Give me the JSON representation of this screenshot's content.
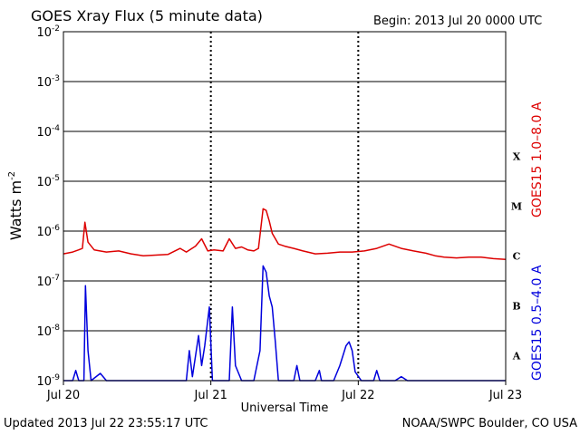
{
  "header": {
    "title": "GOES Xray Flux (5 minute data)",
    "begin": "Begin:  2013 Jul 20 0000 UTC"
  },
  "footer": {
    "updated": "Updated 2013 Jul 22 23:55:17 UTC",
    "credit": "NOAA/SWPC Boulder, CO USA"
  },
  "chart_data": {
    "type": "line",
    "title": "GOES Xray Flux (5 minute data)",
    "xlabel": "Universal Time",
    "ylabel": "Watts m",
    "ylabel_superscript": "-2",
    "yscale": "log",
    "ylim": [
      1e-09,
      0.01
    ],
    "xlim": [
      "2013-07-20 00:00",
      "2013-07-23 00:00"
    ],
    "x_ticks": [
      "Jul 20",
      "Jul 21",
      "Jul 22",
      "Jul 23"
    ],
    "y_ticks": [
      {
        "base": "10",
        "exp": "-2"
      },
      {
        "base": "10",
        "exp": "-3"
      },
      {
        "base": "10",
        "exp": "-4"
      },
      {
        "base": "10",
        "exp": "-5"
      },
      {
        "base": "10",
        "exp": "-6"
      },
      {
        "base": "10",
        "exp": "-7"
      },
      {
        "base": "10",
        "exp": "-8"
      },
      {
        "base": "10",
        "exp": "-9"
      }
    ],
    "flare_classes": [
      "X",
      "M",
      "C",
      "B",
      "A"
    ],
    "grid": true,
    "series": [
      {
        "name": "GOES15 1.0–8.0 A",
        "color": "#dd0000",
        "points": [
          [
            "2013-07-20 00:00",
            3.5e-07
          ],
          [
            "2013-07-20 01:30",
            3.8e-07
          ],
          [
            "2013-07-20 02:30",
            4.2e-07
          ],
          [
            "2013-07-20 03:05",
            4.5e-07
          ],
          [
            "2013-07-20 03:30",
            1.5e-06
          ],
          [
            "2013-07-20 04:00",
            6e-07
          ],
          [
            "2013-07-20 05:00",
            4.2e-07
          ],
          [
            "2013-07-20 07:00",
            3.8e-07
          ],
          [
            "2013-07-20 09:00",
            4e-07
          ],
          [
            "2013-07-20 11:00",
            3.5e-07
          ],
          [
            "2013-07-20 13:00",
            3.2e-07
          ],
          [
            "2013-07-20 15:00",
            3.3e-07
          ],
          [
            "2013-07-20 17:00",
            3.4e-07
          ],
          [
            "2013-07-20 19:00",
            4.5e-07
          ],
          [
            "2013-07-20 20:00",
            3.8e-07
          ],
          [
            "2013-07-20 21:30",
            5e-07
          ],
          [
            "2013-07-20 22:30",
            7e-07
          ],
          [
            "2013-07-20 23:30",
            4e-07
          ],
          [
            "2013-07-21 00:30",
            4.2e-07
          ],
          [
            "2013-07-21 02:00",
            4e-07
          ],
          [
            "2013-07-21 03:00",
            7e-07
          ],
          [
            "2013-07-21 04:00",
            4.5e-07
          ],
          [
            "2013-07-21 05:00",
            4.8e-07
          ],
          [
            "2013-07-21 06:00",
            4.2e-07
          ],
          [
            "2013-07-21 07:00",
            4e-07
          ],
          [
            "2013-07-21 07:45",
            4.5e-07
          ],
          [
            "2013-07-21 08:30",
            2.8e-06
          ],
          [
            "2013-07-21 09:00",
            2.6e-06
          ],
          [
            "2013-07-21 09:30",
            1.6e-06
          ],
          [
            "2013-07-21 10:00",
            9e-07
          ],
          [
            "2013-07-21 11:00",
            5.5e-07
          ],
          [
            "2013-07-21 12:00",
            5e-07
          ],
          [
            "2013-07-21 13:30",
            4.5e-07
          ],
          [
            "2013-07-21 15:00",
            4e-07
          ],
          [
            "2013-07-21 17:00",
            3.5e-07
          ],
          [
            "2013-07-21 19:00",
            3.6e-07
          ],
          [
            "2013-07-21 21:00",
            3.8e-07
          ],
          [
            "2013-07-21 23:00",
            3.8e-07
          ],
          [
            "2013-07-22 01:00",
            4e-07
          ],
          [
            "2013-07-22 03:00",
            4.5e-07
          ],
          [
            "2013-07-22 05:00",
            5.5e-07
          ],
          [
            "2013-07-22 07:00",
            4.5e-07
          ],
          [
            "2013-07-22 09:00",
            4e-07
          ],
          [
            "2013-07-22 11:00",
            3.6e-07
          ],
          [
            "2013-07-22 12:30",
            3.2e-07
          ],
          [
            "2013-07-22 14:00",
            3e-07
          ],
          [
            "2013-07-22 16:00",
            2.9e-07
          ],
          [
            "2013-07-22 18:00",
            3e-07
          ],
          [
            "2013-07-22 20:00",
            3e-07
          ],
          [
            "2013-07-22 22:00",
            2.8e-07
          ],
          [
            "2013-07-23 00:00",
            2.7e-07
          ]
        ]
      },
      {
        "name": "GOES15 0.5–4.0 A",
        "color": "#0000dd",
        "points": [
          [
            "2013-07-20 00:00",
            1e-09
          ],
          [
            "2013-07-20 01:30",
            1e-09
          ],
          [
            "2013-07-20 02:00",
            1.6e-09
          ],
          [
            "2013-07-20 02:30",
            1e-09
          ],
          [
            "2013-07-20 03:20",
            1e-09
          ],
          [
            "2013-07-20 03:35",
            8e-08
          ],
          [
            "2013-07-20 04:00",
            4e-09
          ],
          [
            "2013-07-20 04:30",
            1e-09
          ],
          [
            "2013-07-20 06:00",
            1.4e-09
          ],
          [
            "2013-07-20 07:00",
            1e-09
          ],
          [
            "2013-07-20 12:00",
            1e-09
          ],
          [
            "2013-07-20 20:00",
            1e-09
          ],
          [
            "2013-07-20 20:30",
            4e-09
          ],
          [
            "2013-07-20 21:00",
            1.2e-09
          ],
          [
            "2013-07-20 22:00",
            8e-09
          ],
          [
            "2013-07-20 22:30",
            2e-09
          ],
          [
            "2013-07-20 23:00",
            5e-09
          ],
          [
            "2013-07-20 23:45",
            3e-08
          ],
          [
            "2013-07-21 00:15",
            1e-09
          ],
          [
            "2013-07-21 03:00",
            1e-09
          ],
          [
            "2013-07-21 03:30",
            3e-08
          ],
          [
            "2013-07-21 04:00",
            2e-09
          ],
          [
            "2013-07-21 05:00",
            1e-09
          ],
          [
            "2013-07-21 07:00",
            1e-09
          ],
          [
            "2013-07-21 08:00",
            4e-09
          ],
          [
            "2013-07-21 08:30",
            2e-07
          ],
          [
            "2013-07-21 09:00",
            1.5e-07
          ],
          [
            "2013-07-21 09:30",
            5e-08
          ],
          [
            "2013-07-21 10:00",
            3e-08
          ],
          [
            "2013-07-21 10:30",
            6e-09
          ],
          [
            "2013-07-21 11:00",
            1e-09
          ],
          [
            "2013-07-21 13:30",
            1e-09
          ],
          [
            "2013-07-21 14:00",
            2e-09
          ],
          [
            "2013-07-21 14:30",
            1e-09
          ],
          [
            "2013-07-21 17:00",
            1e-09
          ],
          [
            "2013-07-21 17:40",
            1.6e-09
          ],
          [
            "2013-07-21 18:00",
            1e-09
          ],
          [
            "2013-07-21 20:00",
            1e-09
          ],
          [
            "2013-07-21 21:00",
            2e-09
          ],
          [
            "2013-07-21 22:00",
            5e-09
          ],
          [
            "2013-07-21 22:30",
            6e-09
          ],
          [
            "2013-07-21 23:00",
            4e-09
          ],
          [
            "2013-07-21 23:30",
            1.5e-09
          ],
          [
            "2013-07-22 00:30",
            1e-09
          ],
          [
            "2013-07-22 02:30",
            1e-09
          ],
          [
            "2013-07-22 03:00",
            1.6e-09
          ],
          [
            "2013-07-22 03:30",
            1e-09
          ],
          [
            "2013-07-22 06:00",
            1e-09
          ],
          [
            "2013-07-22 07:00",
            1.2e-09
          ],
          [
            "2013-07-22 08:00",
            1e-09
          ],
          [
            "2013-07-22 23:00",
            1e-09
          ],
          [
            "2013-07-23 00:00",
            1e-09
          ]
        ]
      }
    ]
  }
}
